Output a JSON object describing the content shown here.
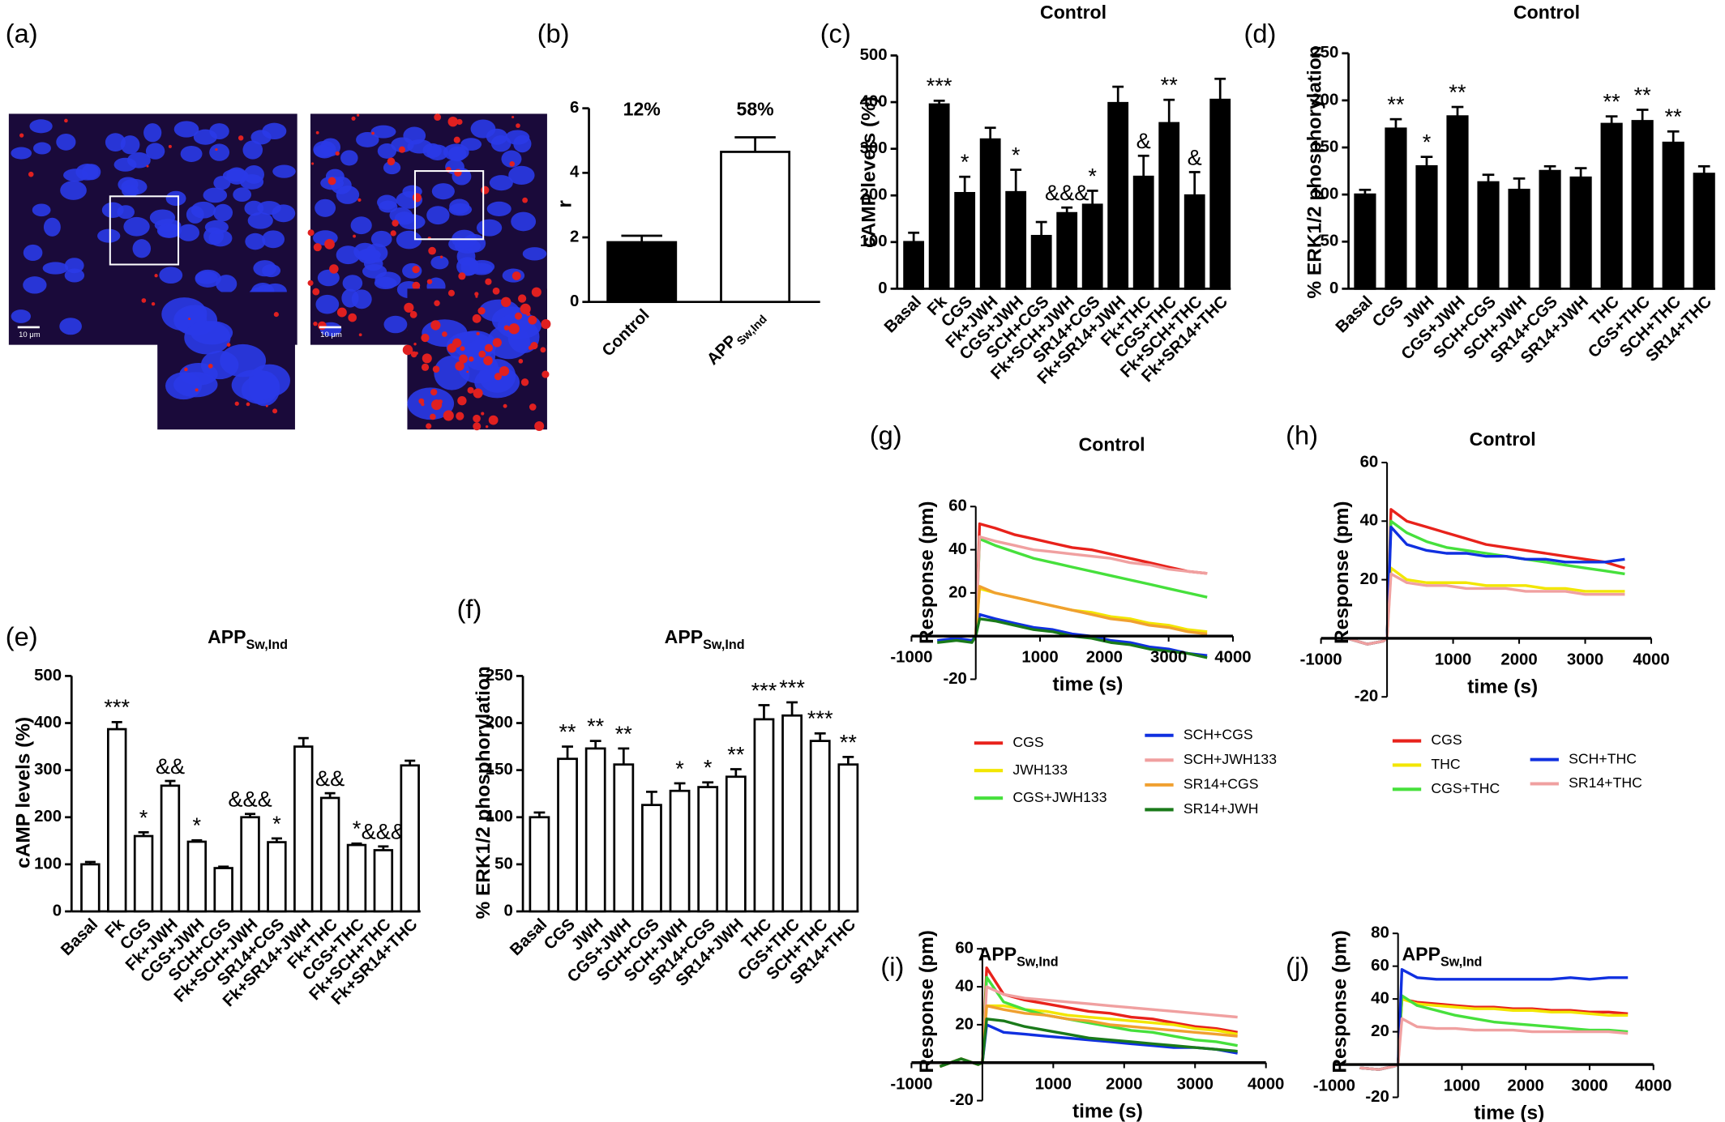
{
  "chart_data": [
    {
      "type": "image",
      "panel": "(a)",
      "scale_bar_labels": [
        "10 μm",
        "10 μm"
      ]
    },
    {
      "type": "bar",
      "panel": "(b)",
      "ylabel": "r",
      "categories": [
        "Control",
        "APP"
      ],
      "category_subs": [
        null,
        "Sw,Ind"
      ],
      "values": [
        1.85,
        4.65
      ],
      "errors": [
        0.2,
        0.45
      ],
      "colors": [
        "#000000",
        "#ffffff"
      ],
      "annotations": [
        "12%",
        "58%"
      ],
      "ylim": [
        0,
        6
      ],
      "yticks": [
        0,
        2,
        4,
        6
      ]
    },
    {
      "type": "bar",
      "panel": "(c)",
      "title": "Control",
      "ylabel": "cAMP levels (%)",
      "categories": [
        "Basal",
        "Fk",
        "CGS",
        "Fk+JWH",
        "CGS+JWH",
        "SCH+CGS",
        "Fk+SCH+JWH",
        "SR14+CGS",
        "Fk+SR14+JWH",
        "Fk+THC",
        "CGS+THC",
        "Fk+SCH+THC",
        "Fk+SR14+THC"
      ],
      "values": [
        100,
        395,
        205,
        320,
        207,
        113,
        162,
        180,
        398,
        240,
        355,
        200,
        405
      ],
      "errors": [
        20,
        8,
        35,
        25,
        48,
        30,
        12,
        30,
        35,
        45,
        50,
        50,
        45
      ],
      "annotations": [
        null,
        "***",
        "*",
        null,
        "*",
        null,
        "&&&",
        "*",
        null,
        "&",
        "**",
        "&",
        null
      ],
      "color": "#000000",
      "ylim": [
        0,
        500
      ],
      "yticks": [
        0,
        100,
        200,
        300,
        400,
        500
      ]
    },
    {
      "type": "bar",
      "panel": "(d)",
      "title": "Control",
      "ylabel": "% ERK1/2 phosphorylation",
      "categories": [
        "Basal",
        "CGS",
        "JWH",
        "CGS+JWH",
        "SCH+CGS",
        "SCH+JWH",
        "SR14+CGS",
        "SR14+JWH",
        "THC",
        "CGS+THC",
        "SCH+THC",
        "SR14+THC"
      ],
      "values": [
        100,
        170,
        130,
        183,
        113,
        105,
        125,
        118,
        175,
        178,
        155,
        122
      ],
      "errors": [
        5,
        10,
        10,
        10,
        8,
        12,
        5,
        10,
        8,
        12,
        12,
        8
      ],
      "annotations": [
        null,
        "**",
        "*",
        "**",
        null,
        null,
        null,
        null,
        "**",
        "**",
        "**",
        null
      ],
      "color": "#000000",
      "ylim": [
        0,
        250
      ],
      "yticks": [
        0,
        50,
        100,
        150,
        200,
        250
      ]
    },
    {
      "type": "bar",
      "panel": "(e)",
      "title": "APP",
      "title_sub": "Sw,Ind",
      "ylabel": "cAMP levels (%)",
      "categories": [
        "Basal",
        "Fk",
        "CGS",
        "Fk+JWH",
        "CGS+JWH",
        "SCH+CGS",
        "Fk+SCH+JWH",
        "SR14+CGS",
        "Fk+SR14+JWH",
        "Fk+THC",
        "CGS+THC",
        "Fk+SCH+THC",
        "Fk+SR14+THC"
      ],
      "values": [
        100,
        387,
        160,
        267,
        148,
        92,
        200,
        147,
        350,
        241,
        141,
        130,
        310
      ],
      "errors": [
        5,
        15,
        8,
        10,
        3,
        3,
        7,
        8,
        18,
        10,
        3,
        8,
        10
      ],
      "annotations": [
        null,
        "***",
        "*",
        "&&",
        "*",
        null,
        "&&&",
        "*",
        null,
        "&&",
        "*",
        "&&&",
        null
      ],
      "color": "#ffffff",
      "ylim": [
        0,
        500
      ],
      "yticks": [
        0,
        100,
        200,
        300,
        400,
        500
      ]
    },
    {
      "type": "bar",
      "panel": "(f)",
      "title": "APP",
      "title_sub": "Sw,Ind",
      "ylabel": "% ERK1/2 phosphorylation",
      "categories": [
        "Basal",
        "CGS",
        "JWH",
        "CGS+JWH",
        "SCH+CGS",
        "SCH+JWH",
        "SR14+CGS",
        "SR14+JWH",
        "THC",
        "CGS+THC",
        "SCH+THC",
        "SR14+THC"
      ],
      "values": [
        100,
        162,
        173,
        156,
        113,
        128,
        132,
        143,
        204,
        208,
        181,
        156
      ],
      "errors": [
        5,
        13,
        8,
        17,
        14,
        8,
        5,
        8,
        15,
        14,
        8,
        8
      ],
      "annotations": [
        null,
        "**",
        "**",
        "**",
        null,
        "*",
        "*",
        "**",
        "***",
        "***",
        "***",
        "**"
      ],
      "color": "#ffffff",
      "ylim": [
        0,
        250
      ],
      "yticks": [
        0,
        50,
        100,
        150,
        200,
        250
      ]
    },
    {
      "type": "line",
      "panel": "(g)",
      "title": "Control",
      "ylabel": "Response (pm)",
      "xlabel": "time (s)",
      "x": [
        -600,
        -300,
        -60,
        0,
        60,
        300,
        600,
        900,
        1200,
        1500,
        1800,
        2100,
        2400,
        2700,
        3000,
        3300,
        3600
      ],
      "series": [
        {
          "name": "CGS",
          "color": "#e8221b",
          "values": [
            0,
            0,
            0,
            0,
            52,
            50,
            47,
            45,
            43,
            41,
            40,
            38,
            36,
            34,
            32,
            30,
            29
          ]
        },
        {
          "name": "JWH133",
          "color": "#f2e600",
          "values": [
            0,
            0,
            0,
            0,
            22,
            20,
            18,
            16,
            14,
            12,
            11,
            9,
            8,
            6,
            5,
            3,
            2
          ]
        },
        {
          "name": "CGS+JWH133",
          "color": "#46e03c",
          "values": [
            0,
            0,
            0,
            0,
            45,
            42,
            39,
            36,
            34,
            32,
            30,
            28,
            26,
            24,
            22,
            20,
            18
          ]
        },
        {
          "name": "SCH+CGS",
          "color": "#1030e0",
          "values": [
            -2,
            -1,
            -2,
            0,
            10,
            8,
            6,
            4,
            3,
            1,
            0,
            -2,
            -3,
            -5,
            -6,
            -8,
            -9
          ]
        },
        {
          "name": "SCH+JWH133",
          "color": "#f0a0a0",
          "values": [
            0,
            0,
            0,
            0,
            46,
            44,
            42,
            40,
            39,
            38,
            37,
            36,
            34,
            33,
            31,
            30,
            29
          ]
        },
        {
          "name": "SR14+CGS",
          "color": "#f0a030",
          "values": [
            0,
            0,
            0,
            0,
            23,
            20,
            18,
            16,
            14,
            12,
            10,
            8,
            7,
            5,
            4,
            2,
            1
          ]
        },
        {
          "name": "SR14+JWH",
          "color": "#1a7a1a",
          "values": [
            -3,
            -2,
            -3,
            0,
            8,
            7,
            5,
            3,
            2,
            0,
            -1,
            -3,
            -4,
            -6,
            -7,
            -8,
            -10
          ]
        }
      ],
      "xlim": [
        -1000,
        4000
      ],
      "xticks": [
        -1000,
        1000,
        2000,
        3000,
        4000
      ],
      "ylim": [
        -20,
        60
      ],
      "yticks": [
        -20,
        20,
        40,
        60
      ],
      "legend": "below"
    },
    {
      "type": "line",
      "panel": "(h)",
      "title": "Control",
      "ylabel": "Response (pm)",
      "xlabel": "time (s)",
      "x": [
        -600,
        -300,
        -60,
        0,
        60,
        300,
        600,
        900,
        1200,
        1500,
        1800,
        2100,
        2400,
        2700,
        3000,
        3300,
        3600
      ],
      "series": [
        {
          "name": "CGS",
          "color": "#e8221b",
          "values": [
            0,
            -2,
            -1,
            0,
            44,
            40,
            38,
            36,
            34,
            32,
            31,
            30,
            29,
            28,
            27,
            26,
            24
          ]
        },
        {
          "name": "THC",
          "color": "#f2e600",
          "values": [
            0,
            -2,
            -1,
            0,
            24,
            20,
            19,
            19,
            19,
            18,
            18,
            18,
            17,
            17,
            16,
            16,
            16
          ]
        },
        {
          "name": "CGS+THC",
          "color": "#46e03c",
          "values": [
            0,
            -2,
            -1,
            0,
            40,
            36,
            33,
            31,
            30,
            29,
            28,
            27,
            26,
            25,
            24,
            23,
            22
          ]
        },
        {
          "name": "SCH+THC",
          "color": "#1030e0",
          "values": [
            0,
            -2,
            -1,
            0,
            38,
            32,
            30,
            29,
            29,
            28,
            28,
            27,
            27,
            26,
            26,
            26,
            27
          ]
        },
        {
          "name": "SR14+THC",
          "color": "#f0a0a0",
          "values": [
            0,
            -2,
            -1,
            0,
            22,
            19,
            18,
            18,
            17,
            17,
            17,
            16,
            16,
            16,
            15,
            15,
            15
          ]
        }
      ],
      "xlim": [
        -1000,
        4000
      ],
      "xticks": [
        -1000,
        1000,
        2000,
        3000,
        4000
      ],
      "ylim": [
        -20,
        60
      ],
      "yticks": [
        -20,
        20,
        40,
        60
      ],
      "legend": "below"
    },
    {
      "type": "line",
      "panel": "(i)",
      "title": "APP",
      "title_sub": "Sw,Ind",
      "ylabel": "Response (pm)",
      "xlabel": "time (s)",
      "x": [
        -600,
        -300,
        -60,
        0,
        60,
        300,
        600,
        900,
        1200,
        1500,
        1800,
        2100,
        2400,
        2700,
        3000,
        3300,
        3600
      ],
      "series": [
        {
          "color": "#e8221b",
          "values": [
            -2,
            2,
            -1,
            0,
            50,
            36,
            33,
            31,
            29,
            27,
            26,
            24,
            23,
            21,
            19,
            18,
            16
          ]
        },
        {
          "color": "#f2e600",
          "values": [
            -2,
            2,
            -1,
            0,
            30,
            30,
            28,
            27,
            25,
            24,
            23,
            22,
            21,
            20,
            18,
            17,
            15
          ]
        },
        {
          "color": "#46e03c",
          "values": [
            -2,
            2,
            -1,
            0,
            45,
            32,
            28,
            25,
            23,
            21,
            19,
            17,
            16,
            14,
            12,
            11,
            9
          ]
        },
        {
          "color": "#1030e0",
          "values": [
            -2,
            2,
            -1,
            0,
            20,
            16,
            15,
            14,
            13,
            12,
            11,
            10,
            9,
            8,
            8,
            7,
            5
          ]
        },
        {
          "color": "#f0a0a0",
          "values": [
            -2,
            2,
            -1,
            0,
            40,
            36,
            34,
            33,
            32,
            31,
            30,
            29,
            28,
            27,
            26,
            25,
            24
          ]
        },
        {
          "color": "#f0a030",
          "values": [
            -2,
            2,
            -1,
            0,
            30,
            28,
            26,
            25,
            23,
            22,
            20,
            19,
            18,
            17,
            16,
            15,
            14
          ]
        },
        {
          "color": "#1a7a1a",
          "values": [
            -2,
            2,
            -1,
            0,
            23,
            22,
            19,
            17,
            15,
            13,
            12,
            11,
            10,
            9,
            8,
            7,
            6
          ]
        }
      ],
      "xlim": [
        -1000,
        4000
      ],
      "xticks": [
        -1000,
        1000,
        2000,
        3000,
        4000
      ],
      "ylim": [
        -20,
        60
      ],
      "yticks": [
        -20,
        20,
        40,
        60
      ]
    },
    {
      "type": "line",
      "panel": "(j)",
      "title": "APP",
      "title_sub": "Sw,Ind",
      "ylabel": "Response (pm)",
      "xlabel": "time (s)",
      "x": [
        -600,
        -300,
        -60,
        0,
        60,
        300,
        600,
        900,
        1200,
        1500,
        1800,
        2100,
        2400,
        2700,
        3000,
        3300,
        3600
      ],
      "series": [
        {
          "color": "#e8221b",
          "values": [
            -2,
            -3,
            -1,
            0,
            40,
            38,
            37,
            36,
            35,
            35,
            34,
            34,
            33,
            33,
            32,
            32,
            31
          ]
        },
        {
          "color": "#f2e600",
          "values": [
            -2,
            -3,
            -1,
            0,
            40,
            37,
            36,
            35,
            34,
            34,
            33,
            33,
            32,
            32,
            31,
            30,
            30
          ]
        },
        {
          "color": "#46e03c",
          "values": [
            -2,
            -3,
            -1,
            0,
            42,
            36,
            33,
            30,
            28,
            26,
            25,
            24,
            23,
            22,
            21,
            21,
            20
          ]
        },
        {
          "color": "#1030e0",
          "values": [
            -2,
            -3,
            -1,
            0,
            58,
            53,
            52,
            52,
            52,
            52,
            52,
            52,
            52,
            53,
            52,
            53,
            53
          ]
        },
        {
          "color": "#f0a0a0",
          "values": [
            -2,
            -3,
            -1,
            0,
            28,
            23,
            22,
            22,
            21,
            21,
            21,
            20,
            20,
            20,
            20,
            20,
            19
          ]
        }
      ],
      "xlim": [
        -1000,
        4000
      ],
      "xticks": [
        -1000,
        1000,
        2000,
        3000,
        4000
      ],
      "ylim": [
        -20,
        80
      ],
      "yticks": [
        -20,
        20,
        40,
        60,
        80
      ]
    }
  ]
}
